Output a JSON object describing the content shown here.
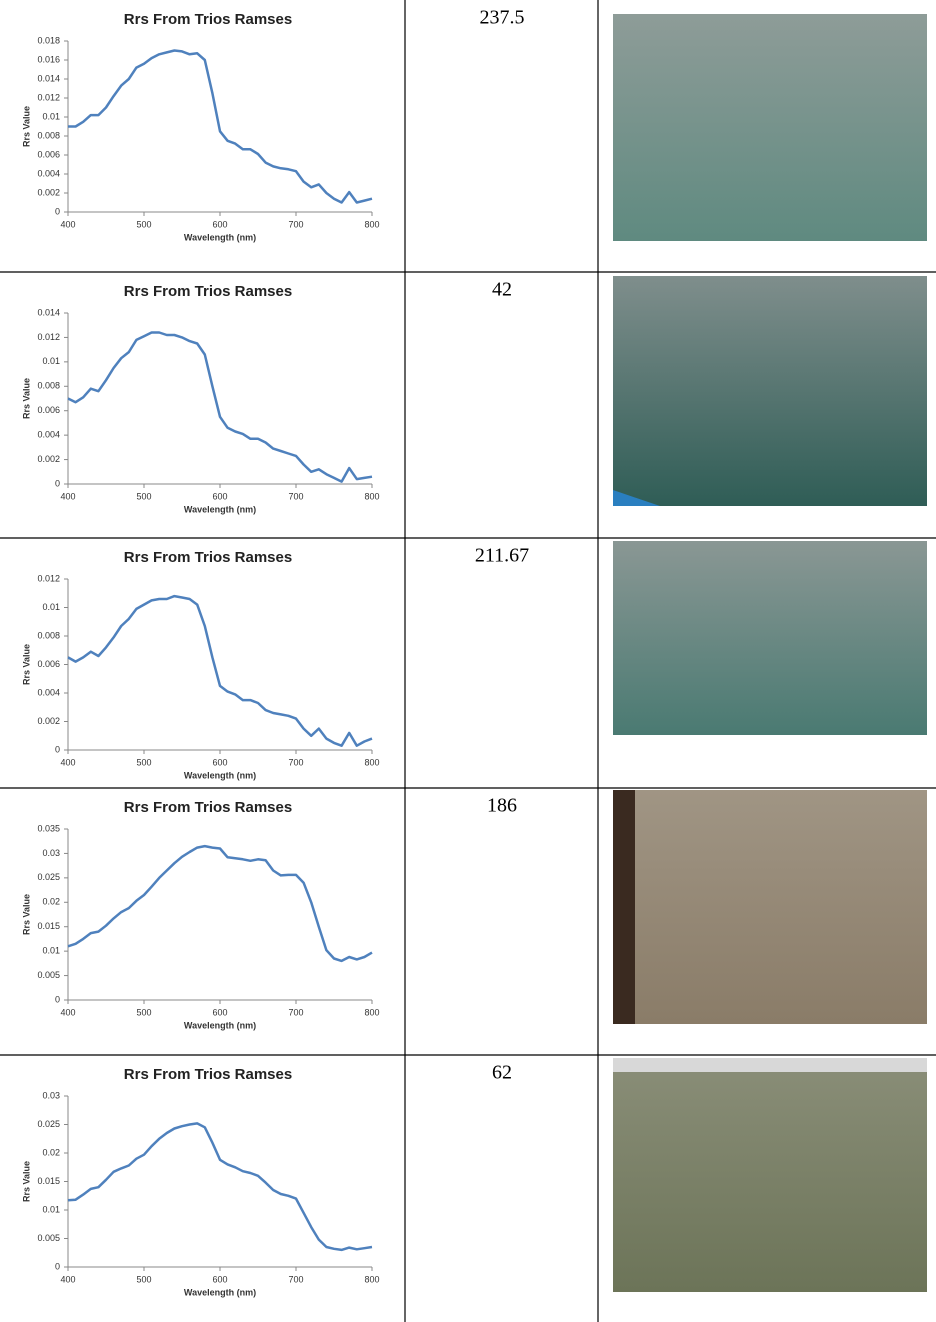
{
  "rows": [
    {
      "chart": {
        "type": "line",
        "title": "Rrs From Trios Ramses",
        "x_label": "Wavelength (nm)",
        "y_label": "Rrs Value",
        "color": "#4f81bd",
        "x": [
          400,
          410,
          420,
          430,
          440,
          450,
          460,
          470,
          480,
          490,
          500,
          510,
          520,
          530,
          540,
          550,
          560,
          570,
          580,
          590,
          600,
          610,
          620,
          630,
          640,
          650,
          660,
          670,
          680,
          690,
          700,
          710,
          720,
          730,
          740,
          750,
          760,
          770,
          780,
          790,
          800
        ],
        "values": [
          0.009,
          0.009,
          0.0095,
          0.0102,
          0.0102,
          0.011,
          0.0122,
          0.0133,
          0.014,
          0.0152,
          0.0156,
          0.0162,
          0.0166,
          0.0168,
          0.017,
          0.0169,
          0.0166,
          0.0167,
          0.016,
          0.0125,
          0.0085,
          0.0075,
          0.0072,
          0.0066,
          0.0066,
          0.0061,
          0.0052,
          0.0048,
          0.0046,
          0.0045,
          0.0043,
          0.0032,
          0.0026,
          0.0029,
          0.002,
          0.0014,
          0.001,
          0.0021,
          0.001,
          0.0012,
          0.0014
        ],
        "xlim": [
          400,
          800
        ],
        "xticks": [
          400,
          500,
          600,
          700,
          800
        ],
        "ylim": [
          0,
          0.018
        ],
        "yticks": [
          0,
          0.002,
          0.004,
          0.006,
          0.008,
          0.01,
          0.012,
          0.014,
          0.016,
          0.018
        ]
      },
      "value": 237.5
    },
    {
      "chart": {
        "type": "line",
        "title": "Rrs From Trios Ramses",
        "x_label": "Wavelength (nm)",
        "y_label": "Rrs Value",
        "color": "#4f81bd",
        "x": [
          400,
          410,
          420,
          430,
          440,
          450,
          460,
          470,
          480,
          490,
          500,
          510,
          520,
          530,
          540,
          550,
          560,
          570,
          580,
          590,
          600,
          610,
          620,
          630,
          640,
          650,
          660,
          670,
          680,
          690,
          700,
          710,
          720,
          730,
          740,
          750,
          760,
          770,
          780,
          790,
          800
        ],
        "values": [
          0.007,
          0.0067,
          0.0071,
          0.0078,
          0.0076,
          0.0085,
          0.0095,
          0.0103,
          0.0108,
          0.0118,
          0.0121,
          0.0124,
          0.0124,
          0.0122,
          0.0122,
          0.012,
          0.0117,
          0.0115,
          0.0106,
          0.008,
          0.0055,
          0.0046,
          0.0043,
          0.0041,
          0.0037,
          0.0037,
          0.0034,
          0.0029,
          0.0027,
          0.0025,
          0.0023,
          0.0016,
          0.001,
          0.0012,
          0.0008,
          0.0005,
          0.0002,
          0.0013,
          0.0004,
          0.0005,
          0.0006
        ],
        "xlim": [
          400,
          800
        ],
        "xticks": [
          400,
          500,
          600,
          700,
          800
        ],
        "ylim": [
          0,
          0.014
        ],
        "yticks": [
          0,
          0.002,
          0.004,
          0.006,
          0.008,
          0.01,
          0.012,
          0.014
        ]
      },
      "value": 42
    },
    {
      "chart": {
        "type": "line",
        "title": "Rrs From Trios Ramses",
        "x_label": "Wavelength (nm)",
        "y_label": "Rrs Value",
        "color": "#4f81bd",
        "x": [
          400,
          410,
          420,
          430,
          440,
          450,
          460,
          470,
          480,
          490,
          500,
          510,
          520,
          530,
          540,
          550,
          560,
          570,
          580,
          590,
          600,
          610,
          620,
          630,
          640,
          650,
          660,
          670,
          680,
          690,
          700,
          710,
          720,
          730,
          740,
          750,
          760,
          770,
          780,
          790,
          800
        ],
        "values": [
          0.0065,
          0.0062,
          0.0065,
          0.0069,
          0.0066,
          0.0072,
          0.0079,
          0.0087,
          0.0092,
          0.0099,
          0.0102,
          0.0105,
          0.0106,
          0.0106,
          0.0108,
          0.0107,
          0.0106,
          0.0102,
          0.0087,
          0.0065,
          0.0045,
          0.0041,
          0.0039,
          0.0035,
          0.0035,
          0.0033,
          0.0028,
          0.0026,
          0.0025,
          0.0024,
          0.0022,
          0.0015,
          0.001,
          0.0015,
          0.0008,
          0.0005,
          0.0003,
          0.0012,
          0.0003,
          0.0006,
          0.0008
        ],
        "xlim": [
          400,
          800
        ],
        "xticks": [
          400,
          500,
          600,
          700,
          800
        ],
        "ylim": [
          0,
          0.012
        ],
        "yticks": [
          0,
          0.002,
          0.004,
          0.006,
          0.008,
          0.01,
          0.012
        ]
      },
      "value": 211.67
    },
    {
      "chart": {
        "type": "line",
        "title": "Rrs From Trios Ramses",
        "x_label": "Wavelength (nm)",
        "y_label": "Rrs Value",
        "color": "#4f81bd",
        "x": [
          400,
          410,
          420,
          430,
          440,
          450,
          460,
          470,
          480,
          490,
          500,
          510,
          520,
          530,
          540,
          550,
          560,
          570,
          580,
          590,
          600,
          610,
          620,
          630,
          640,
          650,
          660,
          670,
          680,
          690,
          700,
          710,
          720,
          730,
          740,
          750,
          760,
          770,
          780,
          790,
          800
        ],
        "values": [
          0.011,
          0.0115,
          0.0125,
          0.0137,
          0.014,
          0.0152,
          0.0167,
          0.018,
          0.0188,
          0.0203,
          0.0215,
          0.0232,
          0.025,
          0.0265,
          0.028,
          0.0293,
          0.0303,
          0.0312,
          0.0315,
          0.0312,
          0.031,
          0.0292,
          0.029,
          0.0288,
          0.0285,
          0.0288,
          0.0286,
          0.0265,
          0.0255,
          0.0256,
          0.0256,
          0.024,
          0.02,
          0.015,
          0.0102,
          0.0085,
          0.008,
          0.0088,
          0.0083,
          0.0088,
          0.0097
        ],
        "xlim": [
          400,
          800
        ],
        "xticks": [
          400,
          500,
          600,
          700,
          800
        ],
        "ylim": [
          0,
          0.035
        ],
        "yticks": [
          0,
          0.005,
          0.01,
          0.015,
          0.02,
          0.025,
          0.03,
          0.035
        ]
      },
      "value": 186
    },
    {
      "chart": {
        "type": "line",
        "title": "Rrs From Trios Ramses",
        "x_label": "Wavelength (nm)",
        "y_label": "Rrs Value",
        "color": "#4f81bd",
        "x": [
          400,
          410,
          420,
          430,
          440,
          450,
          460,
          470,
          480,
          490,
          500,
          510,
          520,
          530,
          540,
          550,
          560,
          570,
          580,
          590,
          600,
          610,
          620,
          630,
          640,
          650,
          660,
          670,
          680,
          690,
          700,
          710,
          720,
          730,
          740,
          750,
          760,
          770,
          780,
          790,
          800
        ],
        "values": [
          0.0117,
          0.0118,
          0.0127,
          0.0137,
          0.014,
          0.0153,
          0.0167,
          0.0173,
          0.0178,
          0.019,
          0.0197,
          0.0212,
          0.0225,
          0.0235,
          0.0243,
          0.0247,
          0.025,
          0.0252,
          0.0245,
          0.0218,
          0.0188,
          0.018,
          0.0175,
          0.0168,
          0.0165,
          0.016,
          0.0148,
          0.0135,
          0.0128,
          0.0125,
          0.012,
          0.0095,
          0.007,
          0.0048,
          0.0035,
          0.0032,
          0.003,
          0.0034,
          0.0031,
          0.0033,
          0.0035
        ],
        "xlim": [
          400,
          800
        ],
        "xticks": [
          400,
          500,
          600,
          700,
          800
        ],
        "ylim": [
          0,
          0.03
        ],
        "yticks": [
          0,
          0.005,
          0.01,
          0.015,
          0.02,
          0.025,
          0.03
        ]
      },
      "value": 62
    }
  ]
}
